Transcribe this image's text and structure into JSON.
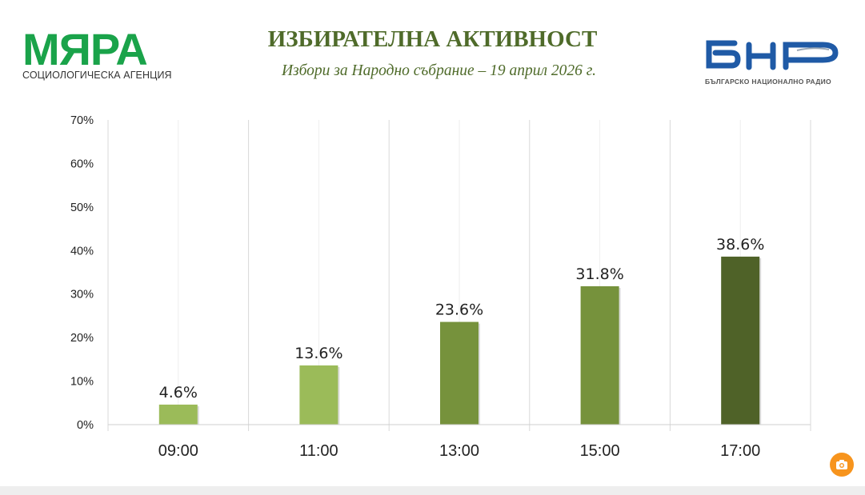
{
  "header": {
    "title": "ИЗБИРАТЕЛНА АКТИВНОСТ",
    "subtitle": "Избори за Народно събрание – 19 април 2026 г."
  },
  "logos": {
    "left": {
      "brand": "МЯРА",
      "sub": "СОЦИОЛОГИЧЕСКА АГЕНЦИЯ",
      "color": "#1aa34a"
    },
    "right": {
      "brand": "БНР",
      "tagline": "БЪЛГАРСКО НАЦИОНАЛНО РАДИО",
      "color": "#1f5aa6"
    }
  },
  "camera_button": {
    "icon": "camera-icon",
    "color": "#f7941d"
  },
  "chart_data": {
    "type": "bar",
    "title": "",
    "xlabel": "",
    "ylabel": "",
    "categories": [
      "09:00",
      "11:00",
      "13:00",
      "15:00",
      "17:00"
    ],
    "values": [
      4.6,
      13.6,
      23.6,
      31.8,
      38.6
    ],
    "value_labels": [
      "4.6%",
      "13.6%",
      "23.6%",
      "31.8%",
      "38.6%"
    ],
    "bar_colors": [
      "#9bbb59",
      "#9bbb59",
      "#76923c",
      "#76923c",
      "#4f6228"
    ],
    "ylim": [
      0,
      70
    ],
    "yticks": [
      "0%",
      "10%",
      "20%",
      "30%",
      "40%",
      "50%",
      "60%",
      "70%"
    ],
    "grid": "vertical separators",
    "legend": "none"
  }
}
